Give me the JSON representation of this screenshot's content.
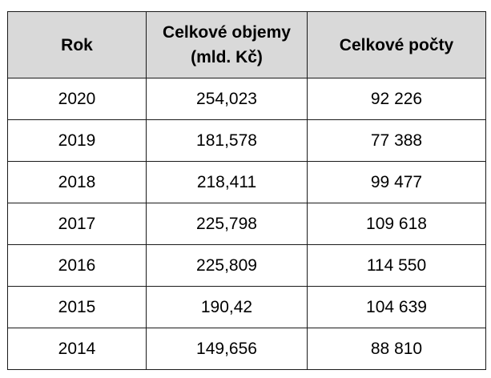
{
  "table": {
    "headers": {
      "year": "Rok",
      "volume_line1": "Celkové objemy",
      "volume_line2": "(mld. Kč)",
      "count": "Celkové počty"
    },
    "rows": [
      {
        "year": "2020",
        "volume": "254,023",
        "count": "92 226"
      },
      {
        "year": "2019",
        "volume": "181,578",
        "count": "77 388"
      },
      {
        "year": "2018",
        "volume": "218,411",
        "count": "99 477"
      },
      {
        "year": "2017",
        "volume": "225,798",
        "count": "109 618"
      },
      {
        "year": "2016",
        "volume": "225,809",
        "count": "114 550"
      },
      {
        "year": "2015",
        "volume": "190,42",
        "count": "104 639"
      },
      {
        "year": "2014",
        "volume": "149,656",
        "count": "88 810"
      }
    ]
  }
}
